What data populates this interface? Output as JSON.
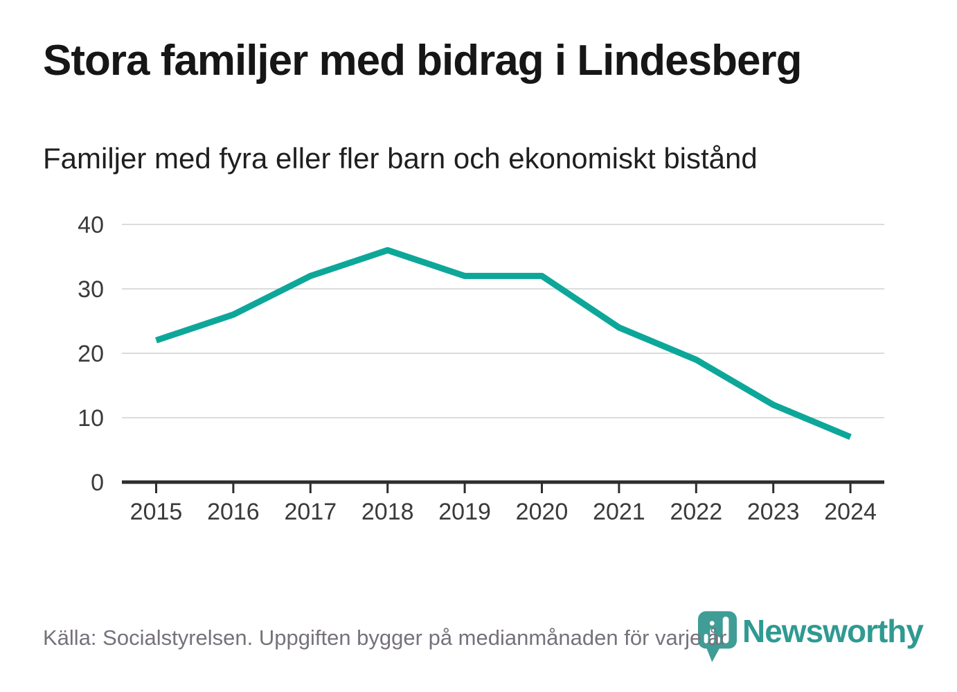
{
  "header": {
    "title": "Stora familjer med bidrag i Lindesberg",
    "subtitle": "Familjer med fyra eller fler barn och ekonomiskt bistånd"
  },
  "footer": {
    "source": "Källa: Socialstyrelsen. Uppgiften bygger på medianmånaden för varje år",
    "logo_text": "Newsworthy"
  },
  "colors": {
    "line": "#0da79a",
    "grid": "#dcdcdc",
    "axis": "#2d2d2d",
    "axis_label": "#3a3a3a",
    "title_text": "#161616",
    "muted_text": "#76717a",
    "brand": "#2f9a92"
  },
  "chart_data": {
    "type": "line",
    "title": "Stora familjer med bidrag i Lindesberg",
    "subtitle": "Familjer med fyra eller fler barn och ekonomiskt bistånd",
    "categories": [
      "2015",
      "2016",
      "2017",
      "2018",
      "2019",
      "2020",
      "2021",
      "2022",
      "2023",
      "2024"
    ],
    "series": [
      {
        "name": "Familjer med fyra eller fler barn och ekonomiskt bistånd",
        "values": [
          22,
          26,
          32,
          36,
          32,
          32,
          24,
          19,
          12,
          7
        ],
        "color": "#0da79a"
      }
    ],
    "xlabel": "",
    "ylabel": "",
    "ylim": [
      0,
      40
    ],
    "yticks": [
      0,
      10,
      20,
      30,
      40
    ],
    "grid": true,
    "legend": "none"
  }
}
